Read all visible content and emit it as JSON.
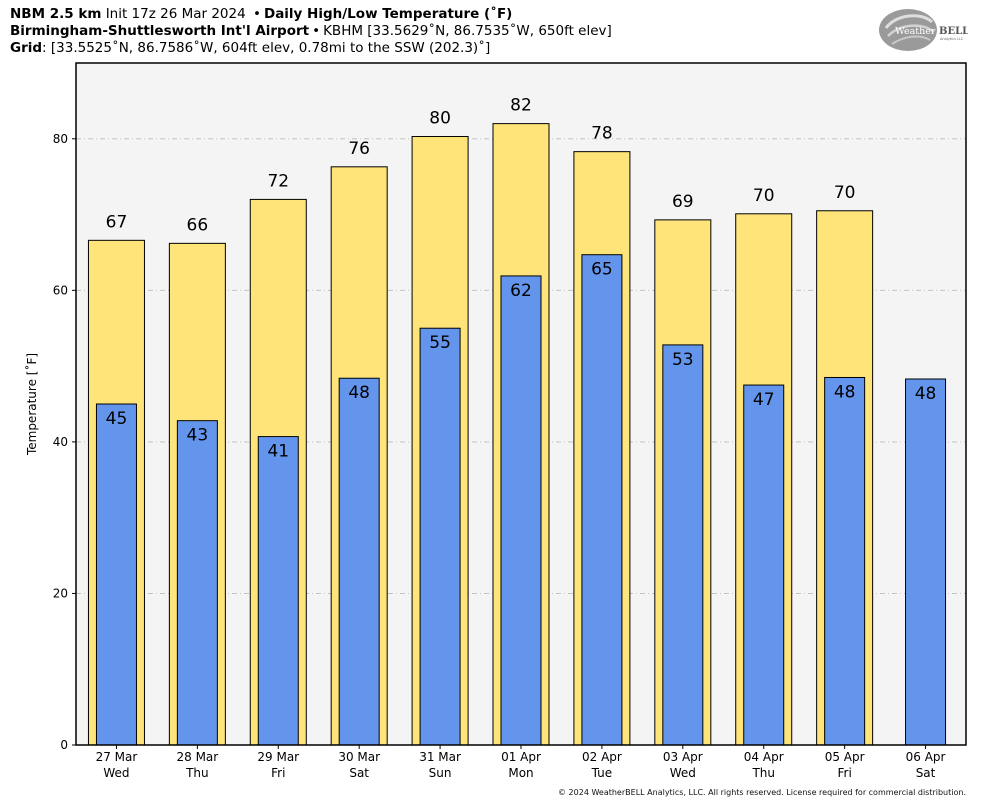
{
  "header": {
    "line1": {
      "model": "NBM 2.5 km",
      "init": "Init 17z 26 Mar 2024",
      "product": "Daily High/Low Temperature (˚F)"
    },
    "line2": {
      "station_name": "Birmingham-Shuttlesworth Int'l Airport",
      "station_info": "KBHM [33.5629˚N, 86.7535˚W, 650ft elev]"
    },
    "line3": {
      "label": "Grid",
      "info": ": [33.5525˚N, 86.7586˚W, 604ft elev, 0.78mi to the SSW (202.3)˚]"
    }
  },
  "logo": {
    "text_left": "Weather",
    "text_right": "BELL",
    "subtext": "Analytics LLC"
  },
  "footer": "© 2024 WeatherBELL Analytics, LLC. All rights reserved. License required for commercial distribution.",
  "colors": {
    "high_bar": "#FFE47A",
    "low_bar": "#6495ED",
    "plot_bg": "#F4F4F4",
    "grid": "#BBBBBB"
  },
  "chart_data": {
    "type": "bar",
    "ylabel": "Temperature [˚F]",
    "ylim": [
      0,
      90
    ],
    "yticks": [
      0,
      20,
      40,
      60,
      80
    ],
    "grid": true,
    "categories": [
      [
        "27 Mar",
        "Wed"
      ],
      [
        "28 Mar",
        "Thu"
      ],
      [
        "29 Mar",
        "Fri"
      ],
      [
        "30 Mar",
        "Sat"
      ],
      [
        "31 Mar",
        "Sun"
      ],
      [
        "01 Apr",
        "Mon"
      ],
      [
        "02 Apr",
        "Tue"
      ],
      [
        "03 Apr",
        "Wed"
      ],
      [
        "04 Apr",
        "Thu"
      ],
      [
        "05 Apr",
        "Fri"
      ],
      [
        "06 Apr",
        "Sat"
      ]
    ],
    "series": [
      {
        "values": [
          66.6,
          66.2,
          72.0,
          76.3,
          80.3,
          82.0,
          78.3,
          69.3,
          70.1,
          70.5,
          null
        ],
        "labels": [
          "67",
          "66",
          "72",
          "76",
          "80",
          "82",
          "78",
          "69",
          "70",
          "70",
          ""
        ]
      },
      {
        "values": [
          45.0,
          42.8,
          40.7,
          48.4,
          55.0,
          61.9,
          64.7,
          52.8,
          47.5,
          48.5,
          48.3
        ],
        "labels": [
          "45",
          "43",
          "41",
          "48",
          "55",
          "62",
          "65",
          "53",
          "47",
          "48",
          "48"
        ]
      }
    ]
  }
}
